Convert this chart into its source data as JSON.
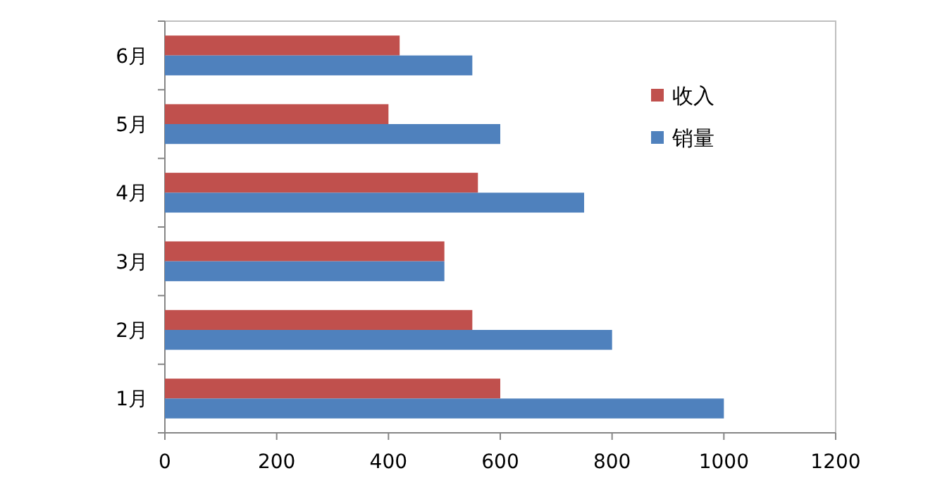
{
  "chart_data": {
    "type": "bar",
    "orientation": "horizontal",
    "categories": [
      "6月",
      "5月",
      "4月",
      "3月",
      "2月",
      "1月"
    ],
    "series": [
      {
        "name": "收入",
        "color": "#c0504d",
        "values": [
          420,
          400,
          560,
          500,
          550,
          600
        ]
      },
      {
        "name": "销量",
        "color": "#4f81bd",
        "values": [
          550,
          600,
          750,
          500,
          800,
          1000
        ]
      }
    ],
    "xlim": [
      0,
      1200
    ],
    "xticks": [
      0,
      200,
      400,
      600,
      800,
      1000,
      1200
    ],
    "legend": "top right",
    "grid": false
  }
}
